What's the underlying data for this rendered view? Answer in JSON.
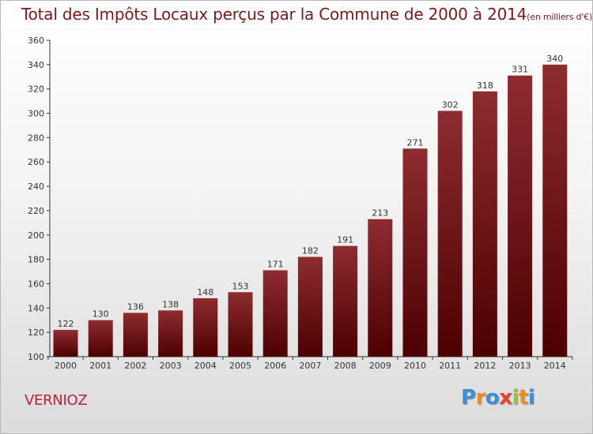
{
  "chart_data": {
    "type": "bar",
    "title": "Total des Impôts Locaux perçus par la Commune de 2000 à 2014",
    "unit_note": "(en milliers d'€)",
    "categories": [
      "2000",
      "2001",
      "2002",
      "2003",
      "2004",
      "2005",
      "2006",
      "2007",
      "2008",
      "2009",
      "2010",
      "2011",
      "2012",
      "2013",
      "2014"
    ],
    "values": [
      122,
      130,
      136,
      138,
      148,
      153,
      171,
      182,
      191,
      213,
      271,
      302,
      318,
      331,
      340
    ],
    "ylim": [
      100,
      360
    ],
    "yticks": [
      100,
      120,
      140,
      160,
      180,
      200,
      220,
      240,
      260,
      280,
      300,
      320,
      340,
      360
    ],
    "grid": false,
    "xlabel": "",
    "ylabel": ""
  },
  "commune": "VERNIOZ",
  "brand": {
    "letters": [
      "P",
      "r",
      "o",
      "x",
      "i",
      "t",
      "i"
    ],
    "colors": [
      "#3a8fd8",
      "#f08a1c",
      "#3a8fd8",
      "#e8402a",
      "#8dc63f",
      "#f08a1c",
      "#3a8fd8"
    ]
  },
  "colors": {
    "bar_top": "#8e2c30",
    "bar_bottom": "#4d0000",
    "axis": "#333333",
    "title": "#7a1a1a",
    "commune": "#b8233a"
  }
}
